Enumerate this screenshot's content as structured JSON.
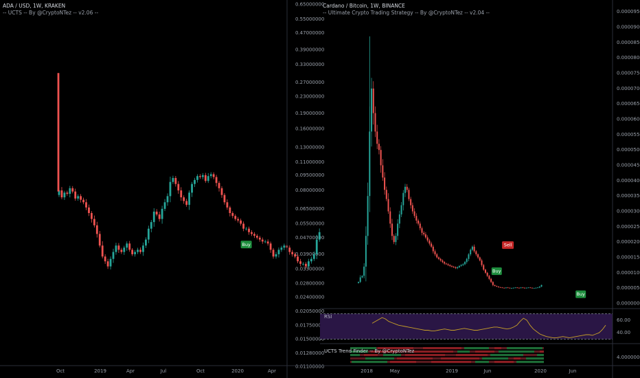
{
  "left_panel": {
    "title": "ADA / USD, 1W, KRAKEN",
    "indicator": "-- UCTS -- By @CryptoNTez -- v2.06 --"
  },
  "right_panel": {
    "title": "Cardano / Bitcoin, 1W, BINANCE",
    "indicator": "-- Ultimate Crypto Trading Strategy -- By @CryptoNTez -- v2.04 --",
    "rsi_label": "RSI",
    "trend_label": "UCTS Trend Finder -- By @CryptoNTez"
  },
  "colors": {
    "up": "#26a69a",
    "down": "#ef5350",
    "buy": "#1e8e3e",
    "sell": "#c62828",
    "rsi": "#c9a227",
    "rsi_band": "#2a1645"
  },
  "chart_data": [
    {
      "type": "candlestick",
      "title": "ADA / USD, 1W, KRAKEN",
      "y_scale": "log",
      "ylim": [
        0.0113,
        0.6514
      ],
      "y_ticks": [
        "0.65000000",
        "0.55000000",
        "0.47000000",
        "0.39000000",
        "0.33000000",
        "0.27000000",
        "0.23000000",
        "0.19000000",
        "0.16000000",
        "0.13000000",
        "0.11000000",
        "0.09500000",
        "0.08000000",
        "0.06500000",
        "0.05500000",
        "0.04700000",
        "0.03900000",
        "0.03300000",
        "0.02800000",
        "0.02400000",
        "0.02050000",
        "0.01750000",
        "0.01500000",
        "0.01280000",
        "0.01100000"
      ],
      "x_ticks": [
        "Oct",
        "2019",
        "Apr",
        "Jul",
        "Oct",
        "2020",
        "Apr"
      ],
      "signals": [
        {
          "label": "Buy",
          "date": "2020-01-06"
        }
      ],
      "series": [
        {
          "start_week": "2018-09-17",
          "close": [
            0.08,
            0.074,
            0.078,
            0.077,
            0.082,
            0.079,
            0.073,
            0.075,
            0.072,
            0.07,
            0.066,
            0.062,
            0.058,
            0.054,
            0.049,
            0.043,
            0.038,
            0.036,
            0.034,
            0.037,
            0.04,
            0.043,
            0.041,
            0.04,
            0.042,
            0.044,
            0.041,
            0.039,
            0.04,
            0.041,
            0.04,
            0.043,
            0.046,
            0.052,
            0.056,
            0.063,
            0.061,
            0.058,
            0.065,
            0.07,
            0.075,
            0.088,
            0.092,
            0.086,
            0.08,
            0.074,
            0.071,
            0.068,
            0.078,
            0.086,
            0.09,
            0.094,
            0.093,
            0.095,
            0.089,
            0.094,
            0.096,
            0.093,
            0.087,
            0.082,
            0.076,
            0.07,
            0.066,
            0.062,
            0.06,
            0.058,
            0.057,
            0.055,
            0.052,
            0.052,
            0.05,
            0.049,
            0.048,
            0.047,
            0.046,
            0.045,
            0.045,
            0.044,
            0.041,
            0.038,
            0.039,
            0.041,
            0.042,
            0.043,
            0.042,
            0.04,
            0.039,
            0.038,
            0.036,
            0.035,
            0.035,
            0.034,
            0.036,
            0.037,
            0.039,
            0.046,
            0.05
          ]
        }
      ]
    },
    {
      "type": "candlestick",
      "title": "Cardano / Bitcoin, 1W, BINANCE",
      "y_ticks": [
        "0.00009500",
        "0.00009000",
        "0.00008500",
        "0.00008000",
        "0.00007500",
        "0.00007000",
        "0.00006500",
        "0.00006000",
        "0.00005500",
        "0.00005000",
        "0.00004500",
        "0.00004000",
        "0.00003500",
        "0.00003000",
        "0.00002500",
        "0.00002000",
        "0.00001500",
        "0.00001000",
        "0.00000500",
        "0.00000000"
      ],
      "ylim": [
        -1e-06,
        9.75e-05
      ],
      "x_ticks": [
        "2018",
        "May",
        "2019",
        "Jun",
        "2020",
        "Jun"
      ],
      "signals": [
        {
          "label": "Buy",
          "date": "2019-03-04"
        },
        {
          "label": "Sell",
          "date": "2019-04-15"
        },
        {
          "label": "Buy",
          "date": "2020-01-13"
        }
      ],
      "series": [
        {
          "start_week": "2017-10-02",
          "close": [
            7e-06,
            8.5e-06,
            9e-06,
            1.2e-05,
            2.2e-05,
            3.5e-05,
            5.6e-05,
            7e-05,
            6.2e-05,
            5.6e-05,
            5.2e-05,
            5e-05,
            4.5e-05,
            4.1e-05,
            3.7e-05,
            3.4e-05,
            3e-05,
            2.6e-05,
            2.2e-05,
            2e-05,
            2.2e-05,
            2.6e-05,
            2.9e-05,
            3.2e-05,
            3.6e-05,
            3.8e-05,
            3.7e-05,
            3.4e-05,
            3.2e-05,
            3e-05,
            2.85e-05,
            2.7e-05,
            2.6e-05,
            2.45e-05,
            2.3e-05,
            2.25e-05,
            2.15e-05,
            2.05e-05,
            1.95e-05,
            1.85e-05,
            1.7e-05,
            1.6e-05,
            1.5e-05,
            1.45e-05,
            1.4e-05,
            1.35e-05,
            1.3e-05,
            1.28e-05,
            1.25e-05,
            1.22e-05,
            1.2e-05,
            1.18e-05,
            1.15e-05,
            1.18e-05,
            1.22e-05,
            1.25e-05,
            1.28e-05,
            1.35e-05,
            1.45e-05,
            1.6e-05,
            1.75e-05,
            1.85e-05,
            1.7e-05,
            1.6e-05,
            1.5e-05,
            1.4e-05,
            1.25e-05,
            1.1e-05,
            1e-05,
            9e-06,
            8e-06,
            7e-06,
            6e-06,
            5.7e-06,
            5.5e-06,
            5.3e-06,
            5.2e-06,
            5.1e-06,
            5e-06,
            5.2e-06,
            5.1e-06,
            5e-06,
            5e-06,
            5.1e-06,
            5.2e-06,
            5.1e-06,
            5e-06,
            5.2e-06,
            5.1e-06,
            5e-06,
            5.1e-06,
            5.2e-06,
            5.1e-06,
            5e-06,
            5e-06,
            5.1e-06,
            5.2e-06,
            5.5e-06,
            6e-06
          ]
        }
      ],
      "rsi": {
        "label": "RSI",
        "y_ticks": [
          "60.00",
          "40.00"
        ],
        "bands": [
          70,
          30
        ],
        "ylim": [
          25,
          75
        ],
        "values": [
          55,
          58,
          61,
          64,
          62,
          58,
          56,
          54,
          52,
          51,
          50,
          49,
          48,
          47,
          46,
          45,
          44,
          44,
          43,
          43,
          44,
          45,
          46,
          45,
          44,
          44,
          45,
          46,
          47,
          46,
          45,
          44,
          44,
          45,
          46,
          47,
          48,
          49,
          49,
          48,
          47,
          46,
          47,
          49,
          52,
          58,
          63,
          60,
          52,
          46,
          42,
          38,
          36,
          34,
          33,
          32,
          32,
          33,
          34,
          33,
          32,
          33,
          34,
          35,
          36,
          37,
          37,
          36,
          38,
          40,
          45,
          52
        ]
      },
      "trend_finder": {
        "label": "UCTS Trend Finder -- By @CryptoNTez",
        "y_ticks": [
          "4.00000000"
        ]
      }
    }
  ]
}
